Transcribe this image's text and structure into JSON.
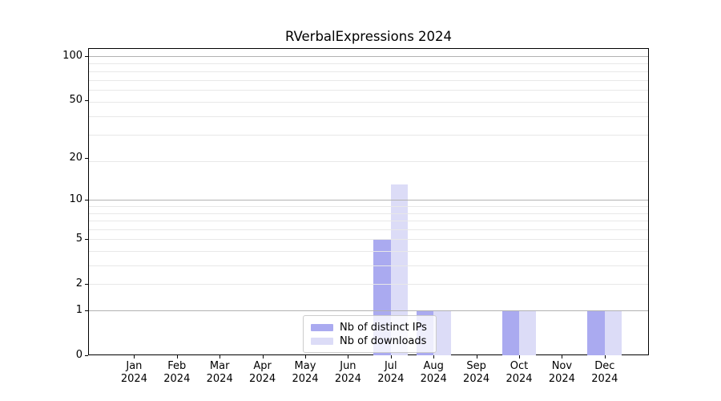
{
  "title": "RVerbalExpressions 2024",
  "chart_data": {
    "type": "bar",
    "title": "RVerbalExpressions 2024",
    "categories": [
      "Jan 2024",
      "Feb 2024",
      "Mar 2024",
      "Apr 2024",
      "May 2024",
      "Jun 2024",
      "Jul 2024",
      "Aug 2024",
      "Sep 2024",
      "Oct 2024",
      "Nov 2024",
      "Dec 2024"
    ],
    "series": [
      {
        "name": "Nb of distinct IPs",
        "color": "#aaaaf0",
        "values": [
          0,
          0,
          0,
          0,
          0,
          0,
          5,
          1,
          0,
          1,
          0,
          1
        ]
      },
      {
        "name": "Nb of downloads",
        "color": "#dcdcf7",
        "values": [
          0,
          0,
          0,
          0,
          0,
          0,
          13,
          1,
          0,
          1,
          0,
          1
        ]
      }
    ],
    "xlabel": "",
    "ylabel": "",
    "yscale": "log1p",
    "yticks": [
      0,
      1,
      2,
      5,
      10,
      20,
      50,
      100
    ],
    "ylim": [
      0,
      113
    ],
    "grid": {
      "major_values": [
        1,
        10,
        100
      ],
      "minor_log1p_positions": [
        3,
        4,
        5,
        6,
        7,
        8,
        9,
        10,
        20,
        30,
        40,
        50,
        60,
        70,
        80,
        90
      ],
      "major_color": "#b2b2b2",
      "minor_color": "#e8e8e8"
    },
    "legend": {
      "position": "lower-center-inside",
      "entries": [
        "Nb of distinct IPs",
        "Nb of downloads"
      ]
    }
  }
}
